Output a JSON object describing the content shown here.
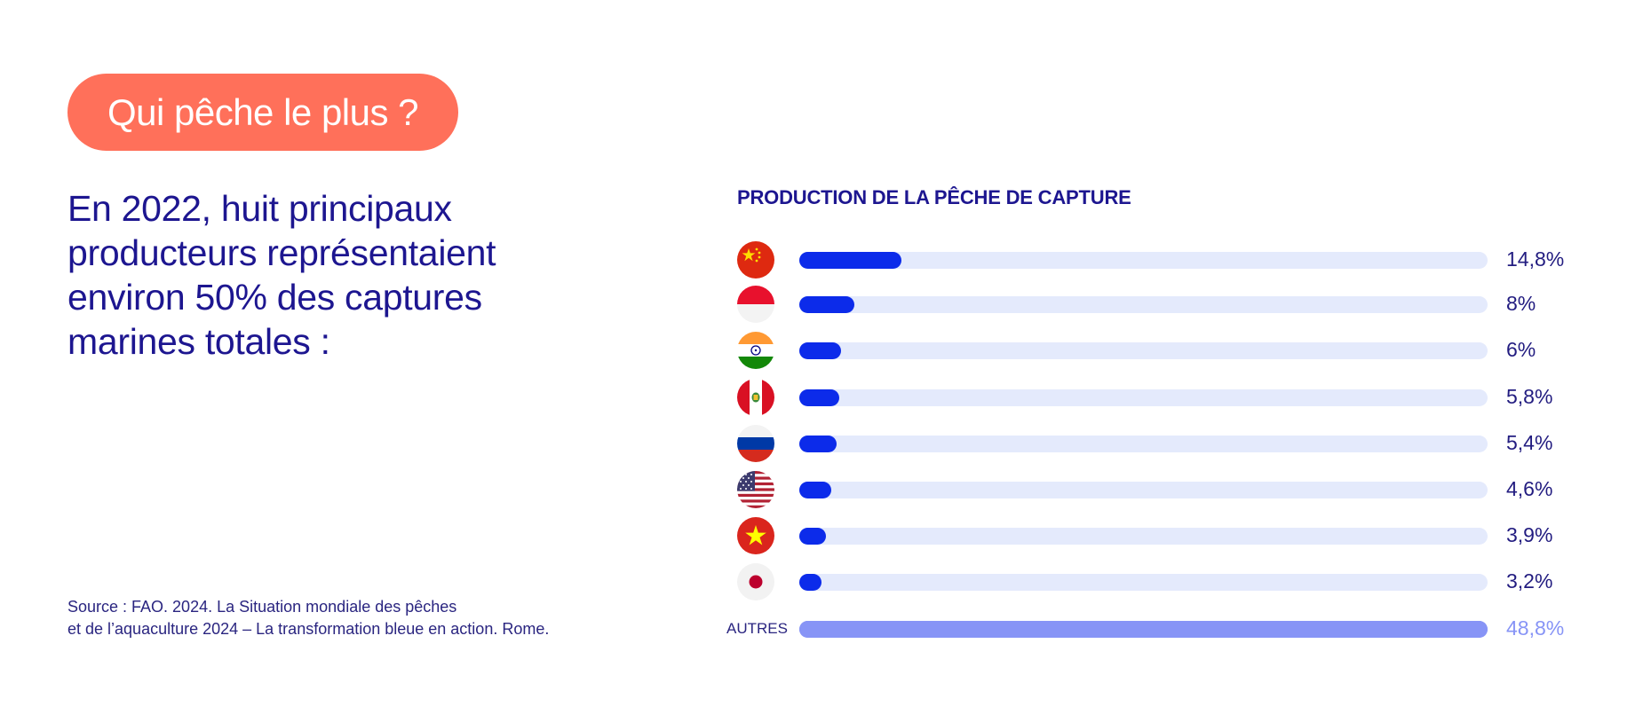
{
  "badge": "Qui pêche le plus ?",
  "headline": "En 2022, huit principaux producteurs représentaient environ 50% des captures marines totales :",
  "source_line1": "Source : FAO. 2024. La Situation mondiale des pêches",
  "source_line2": "et de l’aquaculture 2024 – La transformation bleue en action. Rome.",
  "colors": {
    "badge": "#ff705a",
    "text": "#1d1690",
    "bar": "#0c2bea",
    "track": "#e4eafc",
    "others": "#8794f6"
  },
  "chart_data": {
    "type": "bar",
    "orientation": "horizontal",
    "title": "PRODUCTION DE LA PÊCHE DE CAPTURE",
    "xlim": [
      0,
      100
    ],
    "grid": false,
    "categories": [
      "china-flag-icon",
      "indonesia-flag-icon",
      "india-flag-icon",
      "peru-flag-icon",
      "russia-flag-icon",
      "usa-flag-icon",
      "vietnam-flag-icon",
      "japan-flag-icon",
      "AUTRES"
    ],
    "values": [
      14.8,
      8,
      6,
      5.8,
      5.4,
      4.6,
      3.9,
      3.2,
      48.8
    ],
    "value_labels": [
      "14,8%",
      "8%",
      "6%",
      "5,8%",
      "5,4%",
      "4,6%",
      "3,9%",
      "3,2%",
      "48,8%"
    ],
    "others_label": "AUTRES"
  }
}
